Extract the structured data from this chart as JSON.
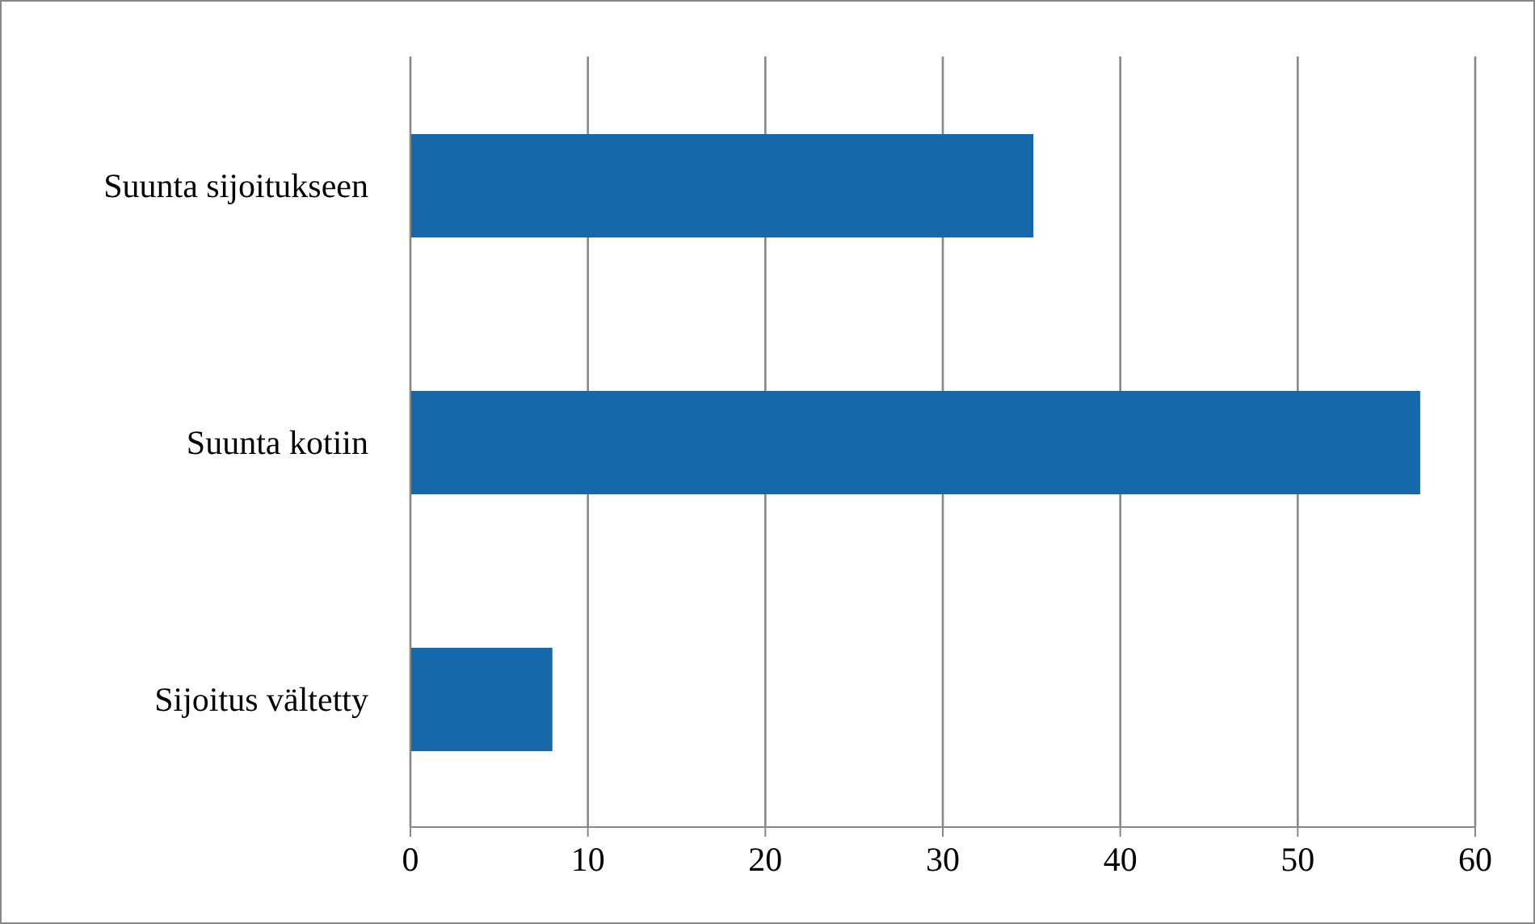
{
  "chart_data": {
    "type": "bar",
    "orientation": "horizontal",
    "categories": [
      "Suunta sijoitukseen",
      "Suunta kotiin",
      "Sijoitus vältetty"
    ],
    "values": [
      35.1,
      56.9,
      8.0
    ],
    "color": "#1569ab",
    "xlim": [
      0,
      60
    ],
    "xticks": [
      0,
      10,
      20,
      30,
      40,
      50,
      60
    ],
    "grid": "x",
    "legend": false
  }
}
